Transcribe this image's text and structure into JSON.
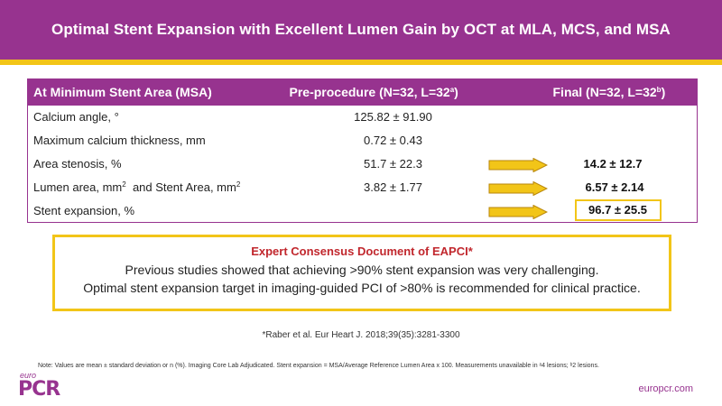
{
  "title": "Optimal Stent Expansion with Excellent Lumen Gain by OCT at MLA, MCS, and MSA",
  "table": {
    "headers": {
      "col1": "At Minimum Stent Area (MSA)",
      "col2": "Pre-procedure (N=32, L=32",
      "col2_sup": "a",
      "col2_end": ")",
      "col3": "Final (N=32, L=32",
      "col3_sup": "b",
      "col3_end": ")"
    },
    "rows": [
      {
        "label": "Calcium angle, °",
        "pre": "125.82 ± 91.90",
        "final": ""
      },
      {
        "label": "Maximum calcium thickness, mm",
        "pre": "0.72 ± 0.43",
        "final": ""
      },
      {
        "label": "Area stenosis, %",
        "pre": "51.7 ± 22.3",
        "final": "14.2 ± 12.7"
      },
      {
        "label_a": "Lumen area, mm",
        "label_sup_a": "2",
        "label_b": "  and Stent Area, mm",
        "label_sup_b": "2",
        "pre": "3.82 ± 1.77",
        "final": "6.57 ± 2.14"
      },
      {
        "label": "Stent expansion, %",
        "pre": "",
        "final": "96.7 ± 25.5"
      }
    ]
  },
  "consensus": {
    "heading": "Expert Consensus Document of EAPCI*",
    "line1": "Previous studies showed that achieving >90% stent expansion was very challenging.",
    "line2": "Optimal stent expansion target in imaging-guided PCI of >80% is recommended for clinical practice."
  },
  "reference": "*Raber et al. Eur Heart J. 2018;39(35):3281-3300",
  "note": "Note: Values are mean ± standard deviation or n (%).  Imaging Core Lab Adjudicated.  Stent expansion = MSA/Average Reference Lumen Area x 100.  Measurements unavailable in ᵃ4 lesions; ᵇ2 lesions.",
  "logo": {
    "small": "euro",
    "big": "PCR"
  },
  "website": "europcr.com",
  "colors": {
    "purple": "#97338f",
    "yellow": "#f2c518",
    "red": "#c1272d"
  }
}
